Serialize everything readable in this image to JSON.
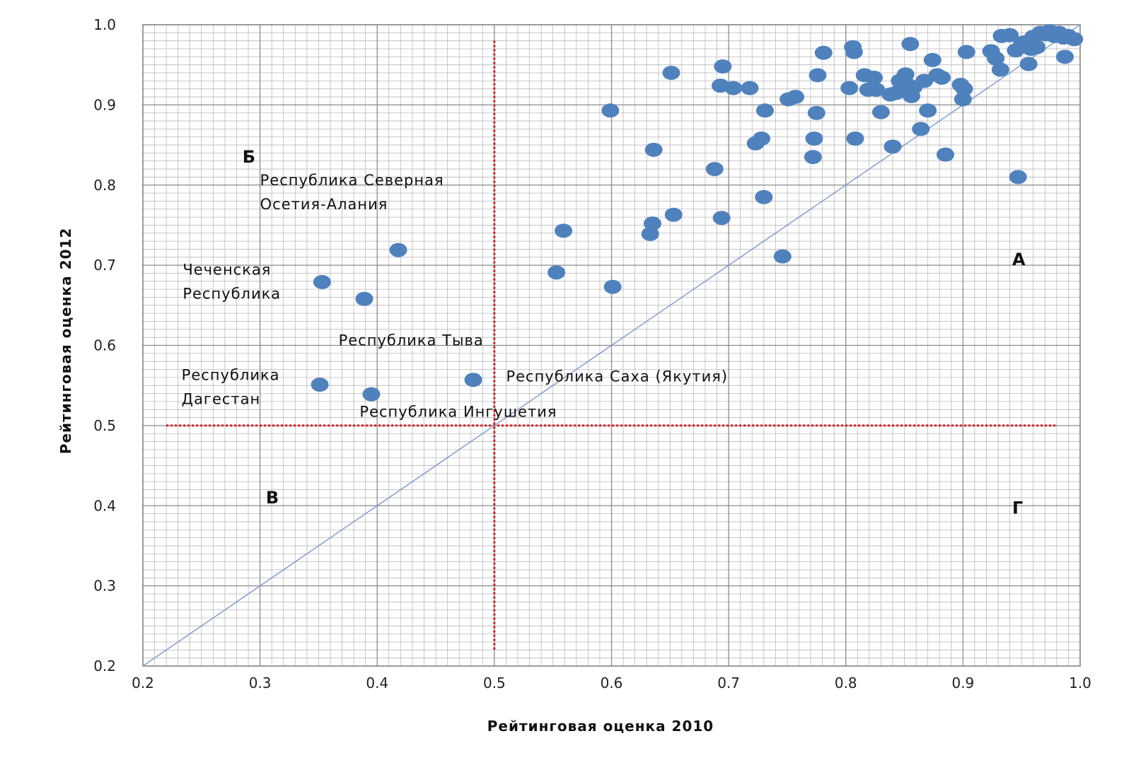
{
  "chart_data": {
    "type": "scatter",
    "xlabel": "Рейтинговая оценка 2010",
    "ylabel": "Рейтинговая оценка 2012",
    "xlim": [
      0.2,
      1.0
    ],
    "ylim": [
      0.2,
      1.0
    ],
    "x_ticks": [
      "0.2",
      "0.3",
      "0.4",
      "0.5",
      "0.6",
      "0.7",
      "0.8",
      "0.9",
      "1.0"
    ],
    "y_ticks": [
      "1.0",
      "0.9",
      "0.8",
      "0.7",
      "0.6",
      "0.5",
      "0.4",
      "0.3",
      "0.2"
    ],
    "grid": true,
    "marker_color": "#4f81bd",
    "diagonal_color": "#7f9fcf",
    "threshold_color": "#e0161e",
    "diagonal": {
      "from": [
        0.2,
        0.2
      ],
      "to": [
        1.0,
        1.0
      ]
    },
    "threshold_vertical": {
      "x": 0.5,
      "y_from": 0.22,
      "y_to": 0.98
    },
    "threshold_horizontal": {
      "y": 0.5,
      "x_from": 0.22,
      "x_to": 0.98
    },
    "quadrant_labels": [
      {
        "text": "Б",
        "x": 0.285,
        "y": 0.828
      },
      {
        "text": "А",
        "x": 0.942,
        "y": 0.7
      },
      {
        "text": "В",
        "x": 0.305,
        "y": 0.403
      },
      {
        "text": "Г",
        "x": 0.942,
        "y": 0.39
      }
    ],
    "annotations": [
      {
        "lines": [
          "Республика Северная",
          "Осетия-Алания"
        ],
        "x": 0.3,
        "y": 0.8
      },
      {
        "lines": [
          "Чеченская",
          "Республика"
        ],
        "x": 0.234,
        "y": 0.688
      },
      {
        "lines": [
          "Республика Тыва"
        ],
        "x": 0.367,
        "y": 0.6
      },
      {
        "lines": [
          "Республика Саха (Якутия)"
        ],
        "x": 0.51,
        "y": 0.555
      },
      {
        "lines": [
          "Республика",
          "Дагестан"
        ],
        "x": 0.233,
        "y": 0.557
      },
      {
        "lines": [
          "Республика Ингушетия"
        ],
        "x": 0.385,
        "y": 0.511
      }
    ],
    "points": [
      [
        0.418,
        0.719
      ],
      [
        0.353,
        0.679
      ],
      [
        0.389,
        0.658
      ],
      [
        0.482,
        0.557
      ],
      [
        0.351,
        0.551
      ],
      [
        0.395,
        0.539
      ],
      [
        0.553,
        0.691
      ],
      [
        0.559,
        0.743
      ],
      [
        0.599,
        0.893
      ],
      [
        0.601,
        0.673
      ],
      [
        0.633,
        0.739
      ],
      [
        0.635,
        0.752
      ],
      [
        0.636,
        0.844
      ],
      [
        0.651,
        0.94
      ],
      [
        0.653,
        0.763
      ],
      [
        0.688,
        0.82
      ],
      [
        0.693,
        0.924
      ],
      [
        0.694,
        0.759
      ],
      [
        0.695,
        0.948
      ],
      [
        0.704,
        0.921
      ],
      [
        0.718,
        0.921
      ],
      [
        0.723,
        0.852
      ],
      [
        0.728,
        0.858
      ],
      [
        0.73,
        0.785
      ],
      [
        0.731,
        0.893
      ],
      [
        0.746,
        0.711
      ],
      [
        0.751,
        0.907
      ],
      [
        0.757,
        0.91
      ],
      [
        0.772,
        0.835
      ],
      [
        0.773,
        0.858
      ],
      [
        0.775,
        0.89
      ],
      [
        0.776,
        0.937
      ],
      [
        0.781,
        0.965
      ],
      [
        0.803,
        0.921
      ],
      [
        0.806,
        0.972
      ],
      [
        0.807,
        0.966
      ],
      [
        0.808,
        0.858
      ],
      [
        0.816,
        0.937
      ],
      [
        0.819,
        0.919
      ],
      [
        0.824,
        0.934
      ],
      [
        0.826,
        0.919
      ],
      [
        0.83,
        0.891
      ],
      [
        0.838,
        0.913
      ],
      [
        0.84,
        0.848
      ],
      [
        0.843,
        0.915
      ],
      [
        0.846,
        0.93
      ],
      [
        0.851,
        0.938
      ],
      [
        0.852,
        0.926
      ],
      [
        0.855,
        0.976
      ],
      [
        0.856,
        0.911
      ],
      [
        0.858,
        0.922
      ],
      [
        0.864,
        0.87
      ],
      [
        0.867,
        0.93
      ],
      [
        0.87,
        0.893
      ],
      [
        0.874,
        0.956
      ],
      [
        0.878,
        0.937
      ],
      [
        0.882,
        0.934
      ],
      [
        0.885,
        0.838
      ],
      [
        0.898,
        0.925
      ],
      [
        0.9,
        0.907
      ],
      [
        0.901,
        0.92
      ],
      [
        0.903,
        0.966
      ],
      [
        0.924,
        0.967
      ],
      [
        0.928,
        0.958
      ],
      [
        0.932,
        0.944
      ],
      [
        0.933,
        0.986
      ],
      [
        0.94,
        0.987
      ],
      [
        0.945,
        0.968
      ],
      [
        0.947,
        0.81
      ],
      [
        0.95,
        0.975
      ],
      [
        0.952,
        0.978
      ],
      [
        0.956,
        0.951
      ],
      [
        0.96,
        0.985
      ],
      [
        0.963,
        0.972
      ],
      [
        0.966,
        0.99
      ],
      [
        0.97,
        0.988
      ],
      [
        0.974,
        0.992
      ],
      [
        0.978,
        0.986
      ],
      [
        0.982,
        0.99
      ],
      [
        0.986,
        0.984
      ],
      [
        0.987,
        0.96
      ],
      [
        0.99,
        0.986
      ],
      [
        0.995,
        0.982
      ],
      [
        0.958,
        0.97
      ]
    ]
  }
}
